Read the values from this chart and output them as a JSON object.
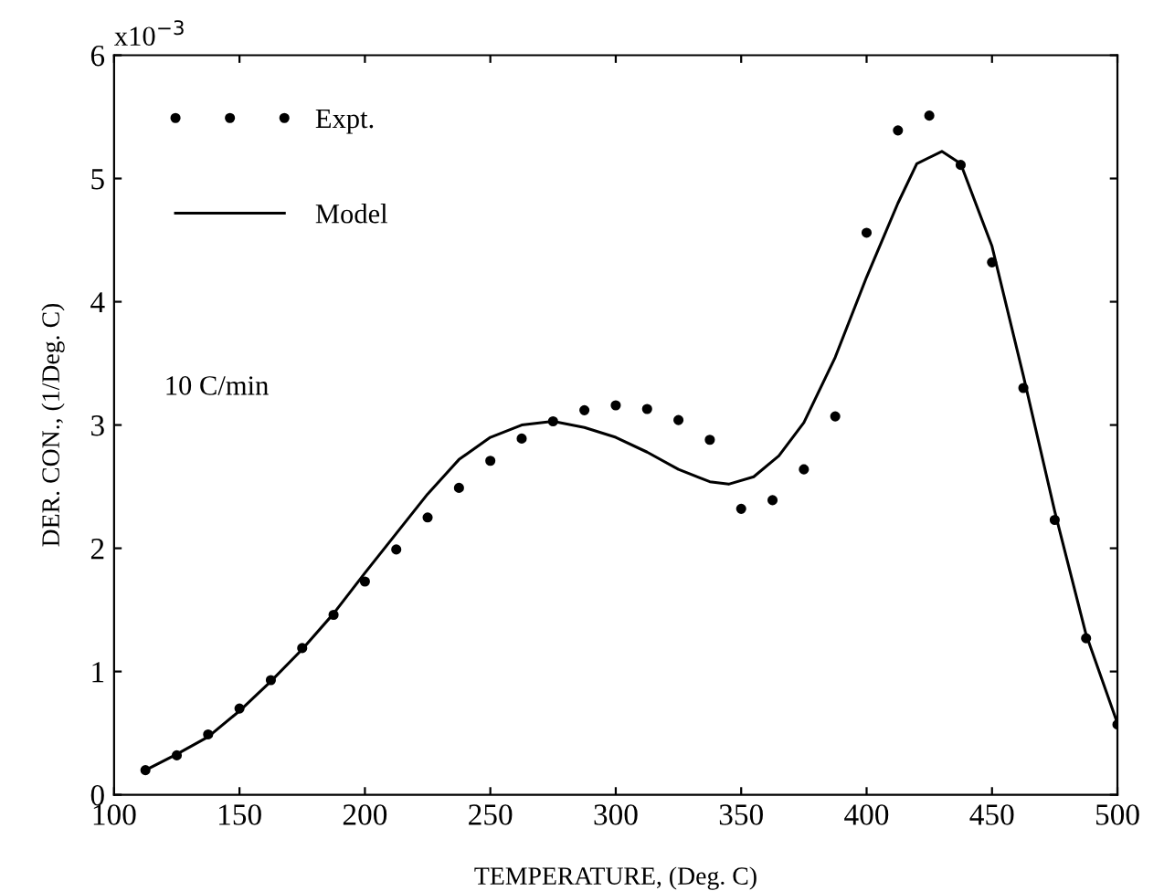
{
  "chart_data": {
    "type": "line",
    "xlabel": "TEMPERATURE, (Deg. C)",
    "ylabel": "DER. CON., (1/Deg. C)",
    "annotations": [
      "x10$^{−3}$",
      "10 C/min"
    ],
    "xlim": [
      100,
      500
    ],
    "ylim": [
      0,
      6
    ],
    "xticks": [
      100,
      150,
      200,
      250,
      300,
      350,
      400,
      450,
      500
    ],
    "yticks": [
      0,
      1,
      2,
      3,
      4,
      5,
      6
    ],
    "grid": false,
    "legend": "top left",
    "series": [
      {
        "name": "Expt.",
        "type": "scatter",
        "color": "#000000",
        "marker": "circle",
        "x": [
          112.5,
          125,
          137.5,
          150,
          162.5,
          175,
          187.5,
          200,
          212.5,
          225,
          237.5,
          250,
          262.5,
          275,
          287.5,
          300,
          312.5,
          325,
          337.5,
          350,
          362.5,
          375,
          387.5,
          400,
          412.5,
          425,
          437.5,
          450,
          462.5,
          475,
          487.5,
          500
        ],
        "values": [
          0.2,
          0.32,
          0.49,
          0.7,
          0.93,
          1.19,
          1.46,
          1.73,
          1.99,
          2.25,
          2.49,
          2.71,
          2.89,
          3.03,
          3.12,
          3.16,
          3.13,
          3.04,
          2.88,
          2.32,
          2.39,
          2.64,
          3.07,
          4.56,
          5.39,
          5.51,
          5.11,
          4.32,
          3.3,
          2.23,
          1.27,
          0.57
        ]
      },
      {
        "name": "Model",
        "color": "#000000",
        "line_style": "solid",
        "x": [
          112.5,
          125,
          137.5,
          150,
          162.5,
          175,
          187.5,
          200,
          212.5,
          225,
          237.5,
          250,
          262.5,
          275,
          287.5,
          300,
          312.5,
          325,
          337.5,
          345,
          355,
          365,
          375,
          387.5,
          400,
          412.5,
          420,
          430,
          437.5,
          450,
          462.5,
          475,
          487.5,
          500
        ],
        "values": [
          0.2,
          0.33,
          0.47,
          0.68,
          0.92,
          1.18,
          1.47,
          1.8,
          2.12,
          2.44,
          2.72,
          2.9,
          3.0,
          3.03,
          2.98,
          2.9,
          2.78,
          2.64,
          2.54,
          2.52,
          2.58,
          2.75,
          3.02,
          3.55,
          4.2,
          4.8,
          5.12,
          5.22,
          5.12,
          4.45,
          3.4,
          2.3,
          1.3,
          0.58
        ]
      }
    ]
  }
}
